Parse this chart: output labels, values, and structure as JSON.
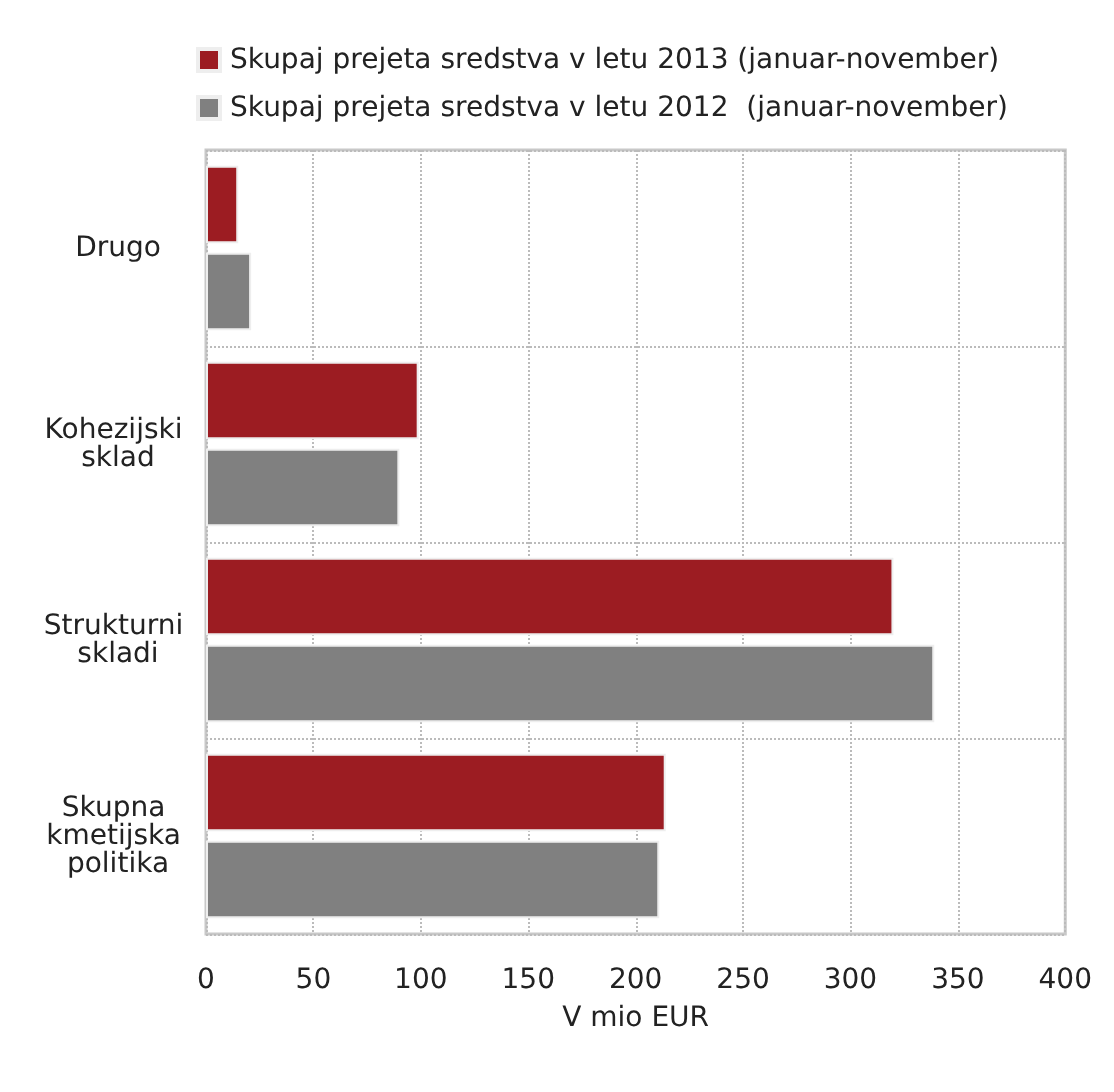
{
  "chart_data": {
    "type": "bar",
    "orientation": "horizontal",
    "xlabel": "V mio EUR",
    "categories": [
      "Drugo",
      "Kohezijski sklad",
      "Strukturni skladi",
      "Skupna kmetijska politika"
    ],
    "series": [
      {
        "name": "Skupaj prejeta sredstva v letu 2013 (januar-november)",
        "color": "#9c1c22",
        "values": [
          15,
          99,
          320,
          214
        ]
      },
      {
        "name": "Skupaj prejeta sredstva v letu 2012  (januar-november)",
        "color": "#808080",
        "values": [
          21,
          90,
          339,
          211
        ]
      }
    ],
    "xlim": [
      0,
      400
    ],
    "xticks": [
      0,
      50,
      100,
      150,
      200,
      250,
      300,
      350,
      400
    ],
    "grid": true,
    "legend": "top left"
  }
}
